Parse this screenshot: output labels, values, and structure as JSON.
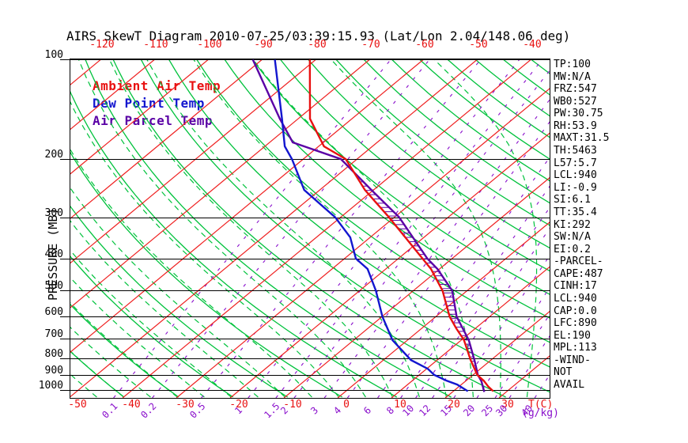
{
  "title": "AIRS SkewT Diagram 2010-07-25/03:39:15.93 (Lat/Lon 2.04/148.06 deg)",
  "legend": {
    "items": [
      {
        "label": "Ambient Air Temp",
        "color": "#e81010"
      },
      {
        "label": "Dew Point Temp",
        "color": "#1316cf"
      },
      {
        "label": "Air Parcel Temp",
        "color": "#5a00a5"
      }
    ]
  },
  "axes": {
    "pressure_axis_label": "PRESSURE (MB)",
    "pressure_ticks": [
      100,
      200,
      300,
      400,
      500,
      600,
      700,
      800,
      900,
      1000
    ],
    "top_temp_ticks": [
      -120,
      -110,
      -100,
      -90,
      -80,
      -70,
      -60,
      -50,
      -40
    ],
    "bottom_temp_ticks": [
      -50,
      -40,
      -30,
      -20,
      -10,
      0,
      10,
      20,
      30
    ],
    "temp_unit_label": "T(C)",
    "mixing_unit_label": "(g/kg)",
    "mixing_ratio_ticks": [
      0.1,
      0.2,
      0.5,
      1,
      1.5,
      2,
      3,
      4,
      6,
      8,
      10,
      12,
      15,
      20,
      25,
      30,
      40
    ]
  },
  "stats": [
    "TP:100",
    "MW:N/A",
    "FRZ:547",
    "WB0:527",
    "PW:30.75",
    "RH:53.9",
    "MAXT:31.5",
    "TH:5463",
    "L57:5.7",
    "LCL:940",
    "LI:-0.9",
    "SI:6.1",
    "TT:35.4",
    "KI:292",
    "SW:N/A",
    "EI:0.2",
    "-PARCEL-",
    "CAPE:487",
    "CINH:17",
    "LCL:940",
    "CAP:0.0",
    "LFC:890",
    "EL:190",
    "MPL:113",
    "-WIND-",
    "NOT",
    "AVAIL"
  ],
  "chart_data": {
    "type": "line",
    "title": "AIRS SkewT Diagram 2010-07-25/03:39:15.93 (Lat/Lon 2.04/148.06 deg)",
    "x_axis": {
      "label": "T(C)",
      "bottom_range": [
        -50,
        30
      ],
      "top_range": [
        -120,
        -40
      ],
      "skewed": true
    },
    "y_axis": {
      "label": "PRESSURE (MB)",
      "range": [
        100,
        1050
      ],
      "scale": "log"
    },
    "series": [
      {
        "name": "Ambient Air Temp",
        "color": "#e81010",
        "points": [
          [
            100,
            -81.1
          ],
          [
            151,
            -67.8
          ],
          [
            183,
            -59.0
          ],
          [
            200,
            -52.1
          ],
          [
            248,
            -41.6
          ],
          [
            300,
            -31.0
          ],
          [
            400,
            -15.5
          ],
          [
            430,
            -11.6
          ],
          [
            500,
            -4.6
          ],
          [
            600,
            2.6
          ],
          [
            650,
            6.4
          ],
          [
            706,
            10.5
          ],
          [
            811,
            16.2
          ],
          [
            900,
            20.8
          ],
          [
            937,
            23.3
          ],
          [
            975,
            25.4
          ],
          [
            1008,
            27.4
          ]
        ]
      },
      {
        "name": "Dew Point Temp",
        "color": "#1316cf",
        "points": [
          [
            100,
            -87.6
          ],
          [
            151,
            -73.0
          ],
          [
            183,
            -66.3
          ],
          [
            200,
            -62.1
          ],
          [
            248,
            -52.9
          ],
          [
            300,
            -41.0
          ],
          [
            345,
            -33.7
          ],
          [
            400,
            -27.9
          ],
          [
            430,
            -23.4
          ],
          [
            500,
            -17.0
          ],
          [
            600,
            -9.9
          ],
          [
            706,
            -2.8
          ],
          [
            811,
            5.1
          ],
          [
            862,
            10.2
          ],
          [
            900,
            12.8
          ],
          [
            937,
            16.4
          ],
          [
            962,
            19.2
          ],
          [
            1000,
            22.1
          ],
          [
            1008,
            22.7
          ]
        ]
      },
      {
        "name": "Air Parcel Temp",
        "color": "#5a00a5",
        "points": [
          [
            100,
            -91.7
          ],
          [
            151,
            -73.4
          ],
          [
            178,
            -65.7
          ],
          [
            200,
            -53.0
          ],
          [
            248,
            -40.4
          ],
          [
            300,
            -29.1
          ],
          [
            400,
            -14.6
          ],
          [
            430,
            -10.4
          ],
          [
            500,
            -2.8
          ],
          [
            600,
            3.9
          ],
          [
            706,
            11.4
          ],
          [
            811,
            16.9
          ],
          [
            900,
            20.9
          ],
          [
            941,
            23.0
          ],
          [
            1013,
            25.9
          ]
        ]
      }
    ],
    "grid": {
      "isotherms_c": [
        -120,
        -110,
        -100,
        -90,
        -80,
        -70,
        -60,
        -50,
        -40,
        -30,
        -20,
        -10,
        0,
        10,
        20,
        30
      ],
      "dry_adiabats_k": [
        230,
        240,
        250,
        260,
        270,
        280,
        290,
        300,
        310,
        320,
        330,
        340,
        350,
        360,
        370,
        380,
        390,
        400,
        410,
        420,
        430,
        440,
        450
      ],
      "moist_adiabats_c": [
        -65,
        -60,
        -55,
        -50,
        -45,
        -40,
        -35,
        -30,
        -25,
        -20,
        -15,
        -10,
        -5,
        0,
        5,
        10,
        15,
        20,
        25,
        30,
        35,
        40,
        45,
        50,
        55,
        60
      ],
      "mixing_ratio_gkg": [
        0.1,
        0.2,
        0.5,
        1,
        1.5,
        2,
        3,
        4,
        6,
        8,
        10,
        12,
        15,
        20,
        25,
        30,
        40
      ]
    },
    "mixing_ratio_axis_x": [
      [
        0.1,
        141
      ],
      [
        0.2,
        190
      ],
      [
        0.5,
        252
      ],
      [
        1,
        311
      ],
      [
        1.5,
        346
      ],
      [
        2,
        369
      ],
      [
        3,
        407
      ],
      [
        4,
        436
      ],
      [
        6,
        474
      ],
      [
        8,
        503
      ],
      [
        10,
        522
      ],
      [
        12,
        543
      ],
      [
        15,
        570
      ],
      [
        20,
        599
      ],
      [
        25,
        622
      ],
      [
        30,
        640
      ],
      [
        40,
        672
      ]
    ],
    "cape_hatch_pressure_range": [
      208,
      885
    ],
    "legend_note": "hatched area between ambient and parcel curves = CAPE region"
  },
  "colors": {
    "isotherm_grid": "#ef2020",
    "adiabat_grid": "#00c23c",
    "mixing_grid": "#8a10cc",
    "pressure_grid": "#000000",
    "background": "#ffffff"
  }
}
